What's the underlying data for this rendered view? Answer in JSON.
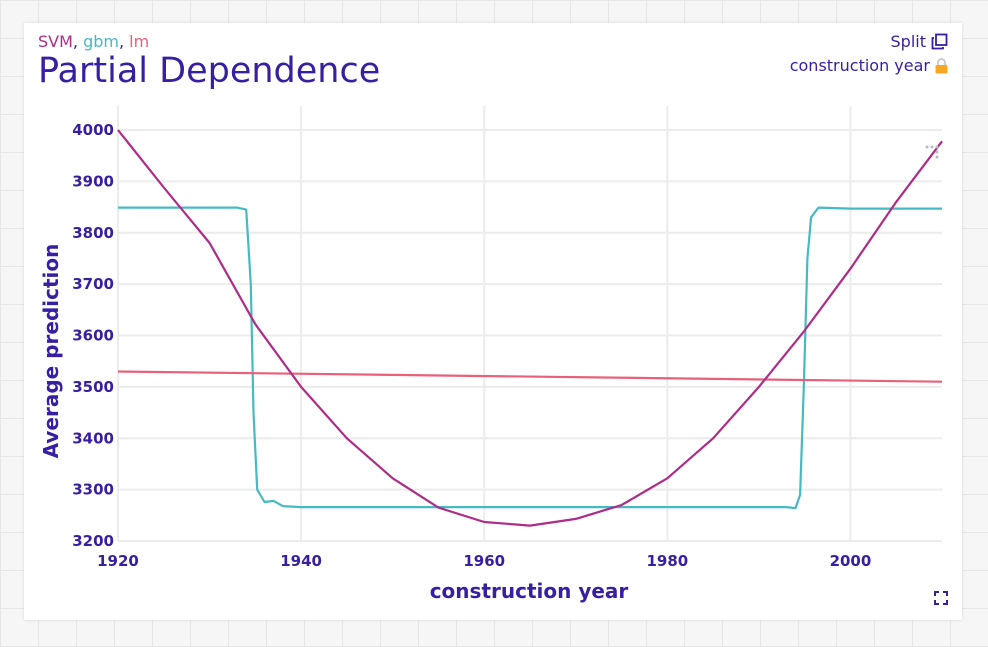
{
  "header": {
    "models": [
      {
        "label": "SVM",
        "color": "#ae2c87"
      },
      {
        "label": "gbm",
        "color": "#46bac2"
      },
      {
        "label": "lm",
        "color": "#e86079"
      }
    ],
    "separator": ", ",
    "title": "Partial Dependence",
    "split_label": "Split",
    "variable_label": "construction year"
  },
  "icons": {
    "copy": "copy-icon",
    "lock": "lock-icon",
    "expand": "expand-icon",
    "drag": "drag-dots-icon"
  },
  "chart_data": {
    "type": "line",
    "title": "Partial Dependence",
    "xlabel": "construction year",
    "ylabel": "Average prediction",
    "xlim": [
      1920,
      2010
    ],
    "ylim": [
      3200,
      4000
    ],
    "xticks": [
      1920,
      1940,
      1960,
      1980,
      2000
    ],
    "yticks": [
      3200,
      3300,
      3400,
      3500,
      3600,
      3700,
      3800,
      3900,
      4000
    ],
    "grid": true,
    "series": [
      {
        "name": "gbm",
        "color": "#46bac2",
        "points": [
          [
            1920,
            3849
          ],
          [
            1933,
            3849
          ],
          [
            1934,
            3845
          ],
          [
            1934.5,
            3700
          ],
          [
            1934.8,
            3450
          ],
          [
            1935.2,
            3300
          ],
          [
            1936,
            3276
          ],
          [
            1937,
            3278
          ],
          [
            1938,
            3268
          ],
          [
            1940,
            3266
          ],
          [
            1960,
            3266
          ],
          [
            1980,
            3266
          ],
          [
            1993,
            3266
          ],
          [
            1994,
            3264
          ],
          [
            1994.5,
            3290
          ],
          [
            1994.9,
            3500
          ],
          [
            1995.3,
            3750
          ],
          [
            1995.7,
            3830
          ],
          [
            1996.5,
            3849
          ],
          [
            2000,
            3847
          ],
          [
            2010,
            3847
          ]
        ]
      },
      {
        "name": "lm",
        "color": "#e86079",
        "points": [
          [
            1920,
            3530
          ],
          [
            2010,
            3510
          ]
        ]
      },
      {
        "name": "SVM",
        "color": "#ae2c87",
        "points": [
          [
            1920,
            4000
          ],
          [
            1925,
            3888
          ],
          [
            1930,
            3780
          ],
          [
            1935,
            3622
          ],
          [
            1940,
            3500
          ],
          [
            1945,
            3400
          ],
          [
            1950,
            3322
          ],
          [
            1955,
            3265
          ],
          [
            1960,
            3237
          ],
          [
            1965,
            3230
          ],
          [
            1970,
            3243
          ],
          [
            1975,
            3270
          ],
          [
            1980,
            3322
          ],
          [
            1985,
            3400
          ],
          [
            1990,
            3500
          ],
          [
            1995,
            3610
          ],
          [
            2000,
            3730
          ],
          [
            2005,
            3860
          ],
          [
            2010,
            3978
          ]
        ]
      }
    ]
  }
}
